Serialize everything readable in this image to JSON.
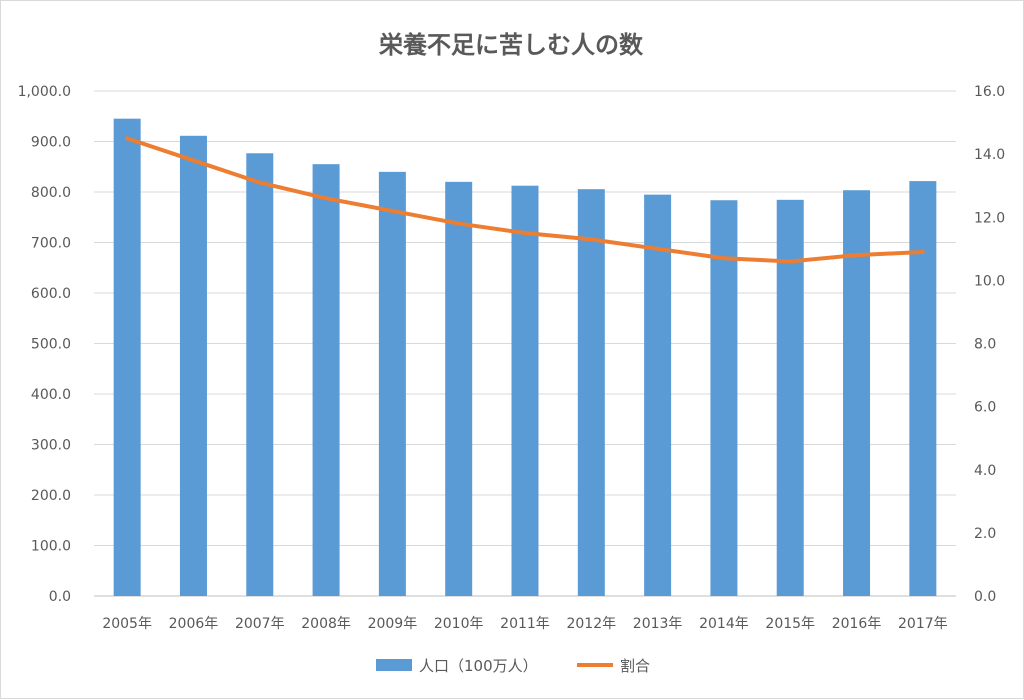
{
  "chart_data": {
    "type": "bar",
    "title": "栄養不足に苦しむ人の数",
    "categories": [
      "2005年",
      "2006年",
      "2007年",
      "2008年",
      "2009年",
      "2010年",
      "2011年",
      "2012年",
      "2013年",
      "2014年",
      "2015年",
      "2016年",
      "2017年"
    ],
    "series": [
      {
        "name": "人口（100万人）",
        "type": "bar",
        "axis": "left",
        "color": "#5b9bd5",
        "values": [
          945.2,
          911.3,
          876.7,
          855.1,
          839.9,
          820.1,
          812.5,
          805.6,
          794.8,
          783.7,
          784.5,
          803.5,
          821.6
        ]
      },
      {
        "name": "割合",
        "type": "line",
        "axis": "right",
        "color": "#ed7d31",
        "values": [
          14.5,
          13.8,
          13.1,
          12.6,
          12.2,
          11.8,
          11.5,
          11.3,
          11.0,
          10.7,
          10.6,
          10.8,
          10.9
        ]
      }
    ],
    "y_left": {
      "min": 0,
      "max": 1000,
      "ticks": [
        "0.0",
        "100.0",
        "200.0",
        "300.0",
        "400.0",
        "500.0",
        "600.0",
        "700.0",
        "800.0",
        "900.0",
        "1,000.0"
      ]
    },
    "y_right": {
      "min": 0,
      "max": 16,
      "ticks": [
        "0.0",
        "2.0",
        "4.0",
        "6.0",
        "8.0",
        "10.0",
        "12.0",
        "14.0",
        "16.0"
      ]
    },
    "grid": true,
    "legend_position": "bottom"
  }
}
